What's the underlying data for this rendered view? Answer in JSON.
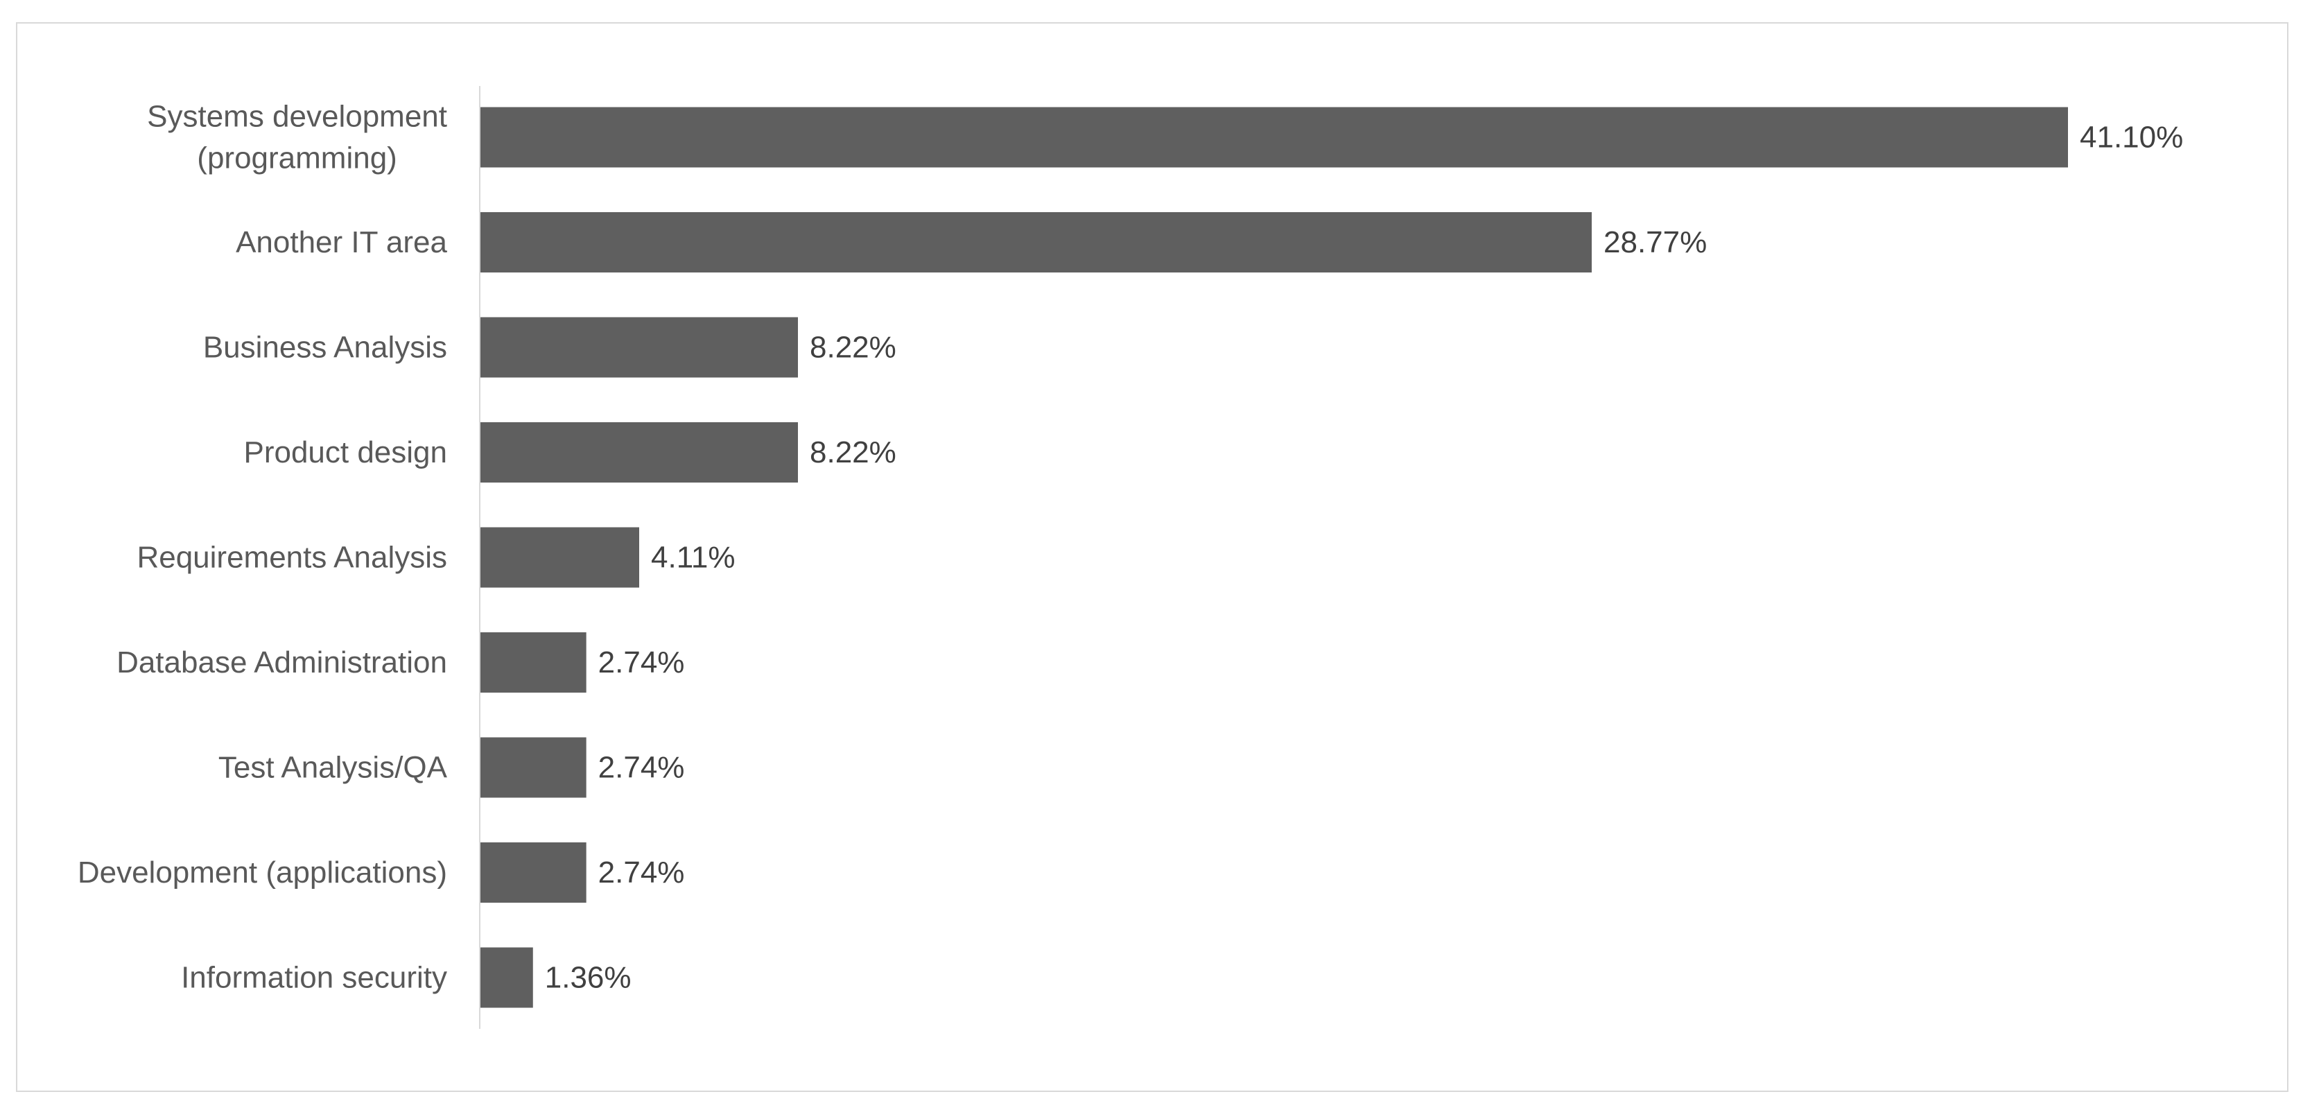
{
  "chart_data": {
    "type": "bar",
    "orientation": "horizontal",
    "title": "",
    "xlabel": "",
    "ylabel": "",
    "categories": [
      [
        "Systems development",
        "(programming)"
      ],
      [
        "Another IT area"
      ],
      [
        "Business Analysis"
      ],
      [
        "Product design"
      ],
      [
        "Requirements Analysis"
      ],
      [
        "Database Administration"
      ],
      [
        "Test Analysis/QA"
      ],
      [
        "Development (applications)"
      ],
      [
        "Information security"
      ]
    ],
    "values": [
      41.1,
      28.77,
      8.22,
      8.22,
      4.11,
      2.74,
      2.74,
      2.74,
      1.36
    ],
    "value_labels": [
      "41.10%",
      "28.77%",
      "8.22%",
      "8.22%",
      "4.11%",
      "2.74%",
      "2.74%",
      "2.74%",
      "1.36%"
    ],
    "xlim": [
      0,
      41.1
    ],
    "grid": false,
    "legend": "none",
    "bar_color": "#5f5f5f",
    "axis_color": "#d9d9d9"
  }
}
